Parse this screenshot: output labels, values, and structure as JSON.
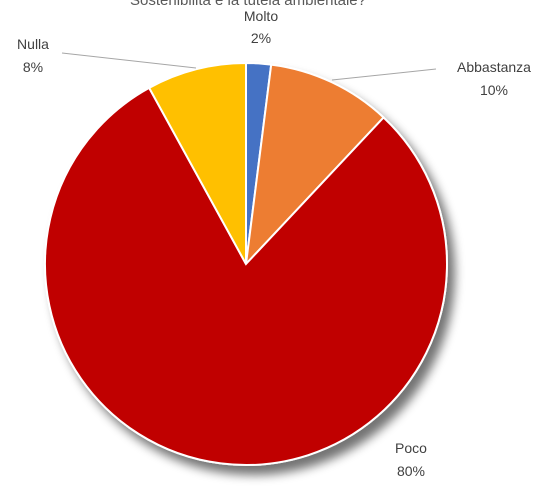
{
  "chart_data": {
    "type": "pie",
    "title": "Sostenibilità e la tutela ambientale?",
    "categories": [
      "Molto",
      "Abbastanza",
      "Poco",
      "Nulla"
    ],
    "values": [
      2,
      10,
      80,
      8
    ],
    "percent_labels": [
      "2%",
      "10%",
      "80%",
      "8%"
    ],
    "colors": [
      "#4472c4",
      "#ed7d31",
      "#c00000",
      "#ffc000"
    ],
    "start_angle": 0,
    "direction": "clockwise",
    "legend": "none",
    "data_labels": "outside with leader lines"
  }
}
